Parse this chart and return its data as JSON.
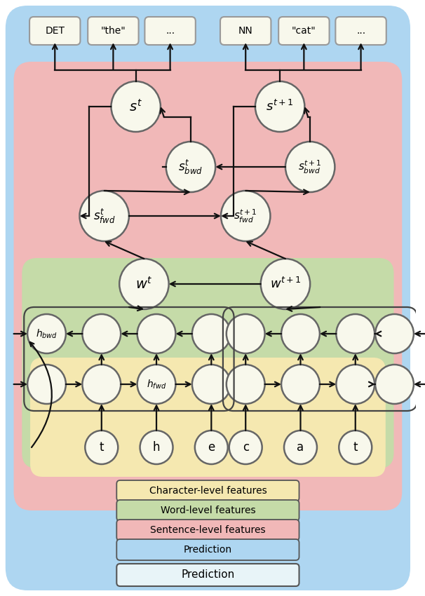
{
  "bg_blue": "#aed6f1",
  "bg_pink": "#f1b8b8",
  "bg_green": "#c5dba8",
  "bg_yellow": "#f5e8b0",
  "node_fill": "#f8f8ec",
  "node_edge": "#666666",
  "arrow_color": "#111111",
  "output_labels": [
    "DET",
    "\"the\"",
    "...",
    "NN",
    "\"cat\"",
    "..."
  ],
  "char_labels": [
    "t",
    "h",
    "e",
    "c",
    "a",
    "t"
  ],
  "legend_labels": [
    "Character-level features",
    "Word-level features",
    "Sentence-level features",
    "Prediction"
  ],
  "legend_colors": [
    "#f5e8b0",
    "#c5dba8",
    "#f1b8b8",
    "#aed6f1"
  ]
}
